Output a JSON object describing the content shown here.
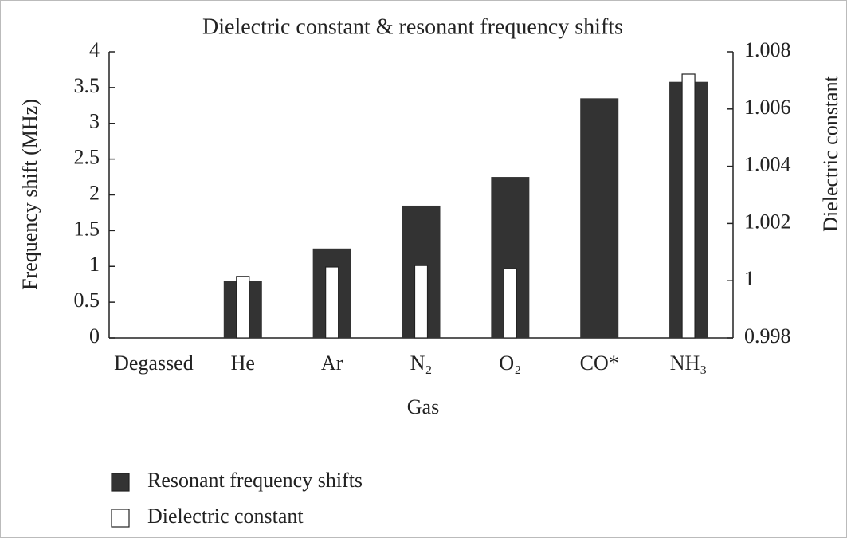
{
  "chart_data": {
    "type": "bar",
    "title": "Dielectric constant & resonant frequency shifts",
    "xlabel": "Gas",
    "ylabel": "Frequency shift (MHz)",
    "y2label": "Dielectric constant",
    "categories": [
      "Degassed",
      "He",
      "Ar",
      "N₂",
      "O₂",
      "CO*",
      "NH₃"
    ],
    "series": [
      {
        "name": "Resonant frequency shifts",
        "color": "#333333",
        "values": [
          0,
          0.8,
          1.25,
          1.85,
          2.25,
          3.35,
          3.58
        ]
      },
      {
        "name": "Dielectric constant",
        "color": "#ffffff",
        "axis": "y2",
        "values": [
          null,
          1.00015,
          1.00048,
          1.00053,
          1.00042,
          null,
          1.00722
        ]
      }
    ],
    "ylim": [
      0,
      4
    ],
    "yticks": [
      0,
      0.5,
      1,
      1.5,
      2,
      2.5,
      3,
      3.5,
      4
    ],
    "y2lim": [
      0.998,
      1.008
    ],
    "y2ticks": [
      0.998,
      1,
      1.002,
      1.004,
      1.006,
      1.008
    ],
    "legend": "below",
    "grid": false
  }
}
